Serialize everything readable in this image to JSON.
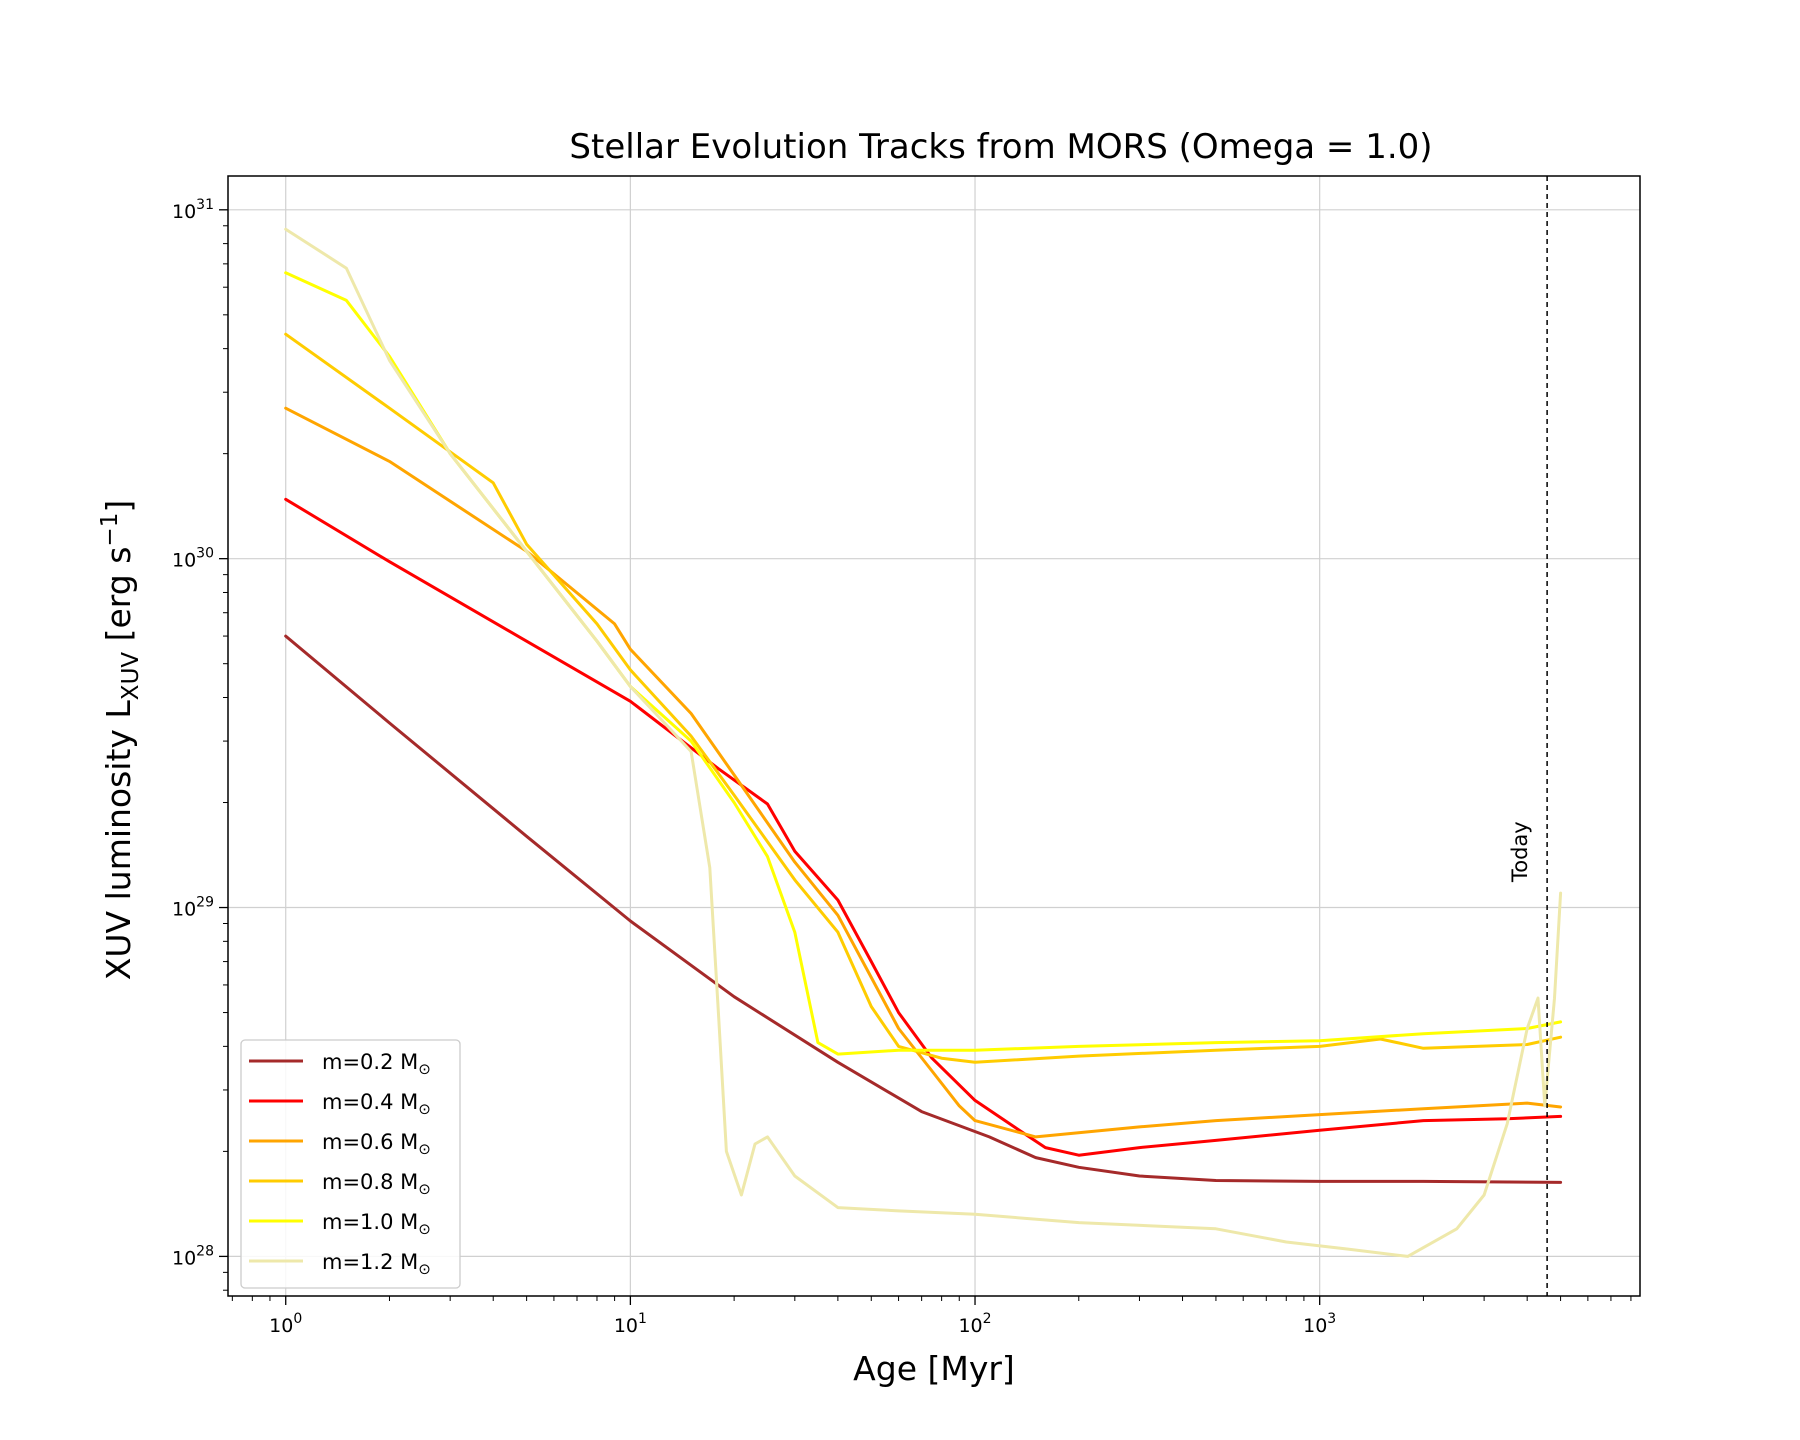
{
  "chart_data": {
    "type": "line",
    "title": "Stellar Evolution Tracks from MORS (Omega = 1.0)",
    "xlabel": "Age [Myr]",
    "ylabel": "XUV luminosity L",
    "ylabel_sub": "XUV",
    "ylabel_unit": " [erg s",
    "ylabel_unit_sup": "−1",
    "ylabel_unit_end": "]",
    "xscale": "log",
    "yscale": "log",
    "xlim": [
      0.68,
      8500
    ],
    "ylim": [
      7.7e+27,
      1.25e+31
    ],
    "grid": true,
    "x_ticks": [
      {
        "base": "10",
        "exp": "0",
        "value": 1
      },
      {
        "base": "10",
        "exp": "1",
        "value": 10
      },
      {
        "base": "10",
        "exp": "2",
        "value": 100
      },
      {
        "base": "10",
        "exp": "3",
        "value": 1000
      }
    ],
    "y_ticks": [
      {
        "base": "10",
        "exp": "28",
        "value": 1e+28
      },
      {
        "base": "10",
        "exp": "29",
        "value": 1e+29
      },
      {
        "base": "10",
        "exp": "30",
        "value": 1e+30
      },
      {
        "base": "10",
        "exp": "31",
        "value": 1e+31
      }
    ],
    "legend_position": "lower-left",
    "annotation": {
      "text": "Today",
      "x": 4570
    },
    "series": [
      {
        "name": "m=0.2 M",
        "color": "#a52a2a",
        "points": [
          [
            1,
            6e+29
          ],
          [
            2,
            3.38e+29
          ],
          [
            5,
            1.6e+29
          ],
          [
            10,
            9.15e+28
          ],
          [
            20,
            5.55e+28
          ],
          [
            40,
            3.6e+28
          ],
          [
            70,
            2.6e+28
          ],
          [
            110,
            2.2e+28
          ],
          [
            150,
            1.92e+28
          ],
          [
            200,
            1.8e+28
          ],
          [
            300,
            1.7e+28
          ],
          [
            500,
            1.65e+28
          ],
          [
            1000,
            1.64e+28
          ],
          [
            2000,
            1.64e+28
          ],
          [
            5000,
            1.63e+28
          ]
        ]
      },
      {
        "name": "m=0.4 M",
        "color": "#ff0000",
        "points": [
          [
            1,
            1.48e+30
          ],
          [
            2,
            9.8e+29
          ],
          [
            5,
            5.8e+29
          ],
          [
            10,
            3.9e+29
          ],
          [
            18,
            2.5e+29
          ],
          [
            25,
            1.98e+29
          ],
          [
            30,
            1.45e+29
          ],
          [
            40,
            1.05e+29
          ],
          [
            50,
            7e+28
          ],
          [
            60,
            5e+28
          ],
          [
            75,
            3.7e+28
          ],
          [
            100,
            2.8e+28
          ],
          [
            130,
            2.35e+28
          ],
          [
            160,
            2.05e+28
          ],
          [
            200,
            1.95e+28
          ],
          [
            300,
            2.05e+28
          ],
          [
            500,
            2.15e+28
          ],
          [
            1000,
            2.3e+28
          ],
          [
            2000,
            2.45e+28
          ],
          [
            3500,
            2.48e+28
          ],
          [
            5000,
            2.52e+28
          ]
        ]
      },
      {
        "name": "m=0.6 M",
        "color": "#ffa500",
        "points": [
          [
            1,
            2.7e+30
          ],
          [
            2,
            1.9e+30
          ],
          [
            5,
            1.05e+30
          ],
          [
            9,
            6.5e+29
          ],
          [
            10,
            5.5e+29
          ],
          [
            15,
            3.6e+29
          ],
          [
            20,
            2.4e+29
          ],
          [
            30,
            1.35e+29
          ],
          [
            40,
            9.5e+28
          ],
          [
            50,
            6.3e+28
          ],
          [
            60,
            4.5e+28
          ],
          [
            75,
            3.4e+28
          ],
          [
            90,
            2.7e+28
          ],
          [
            100,
            2.45e+28
          ],
          [
            150,
            2.2e+28
          ],
          [
            300,
            2.35e+28
          ],
          [
            500,
            2.45e+28
          ],
          [
            1000,
            2.55e+28
          ],
          [
            2000,
            2.65e+28
          ],
          [
            4000,
            2.75e+28
          ],
          [
            5000,
            2.68e+28
          ]
        ]
      },
      {
        "name": "m=0.8 M",
        "color": "#ffcc00",
        "points": [
          [
            1,
            4.4e+30
          ],
          [
            2,
            2.7e+30
          ],
          [
            4,
            1.65e+30
          ],
          [
            5,
            1.1e+30
          ],
          [
            8,
            6.5e+29
          ],
          [
            10,
            4.8e+29
          ],
          [
            15,
            3.1e+29
          ],
          [
            20,
            2.1e+29
          ],
          [
            30,
            1.2e+29
          ],
          [
            40,
            8.5e+28
          ],
          [
            50,
            5.2e+28
          ],
          [
            60,
            4e+28
          ],
          [
            80,
            3.7e+28
          ],
          [
            100,
            3.6e+28
          ],
          [
            200,
            3.75e+28
          ],
          [
            500,
            3.9e+28
          ],
          [
            1000,
            4e+28
          ],
          [
            1500,
            4.2e+28
          ],
          [
            2000,
            3.95e+28
          ],
          [
            4000,
            4.05e+28
          ],
          [
            5000,
            4.25e+28
          ]
        ]
      },
      {
        "name": "m=1.0 M",
        "color": "#ffff00",
        "points": [
          [
            1,
            6.6e+30
          ],
          [
            1.5,
            5.5e+30
          ],
          [
            2,
            3.8e+30
          ],
          [
            3,
            2e+30
          ],
          [
            5,
            1.05e+30
          ],
          [
            8,
            5.8e+29
          ],
          [
            10,
            4.3e+29
          ],
          [
            15,
            3e+29
          ],
          [
            20,
            2e+29
          ],
          [
            25,
            1.4e+29
          ],
          [
            30,
            8.5e+28
          ],
          [
            35,
            4.1e+28
          ],
          [
            40,
            3.8e+28
          ],
          [
            60,
            3.9e+28
          ],
          [
            100,
            3.9e+28
          ],
          [
            200,
            4e+28
          ],
          [
            500,
            4.1e+28
          ],
          [
            1000,
            4.15e+28
          ],
          [
            2000,
            4.35e+28
          ],
          [
            4000,
            4.5e+28
          ],
          [
            5000,
            4.7e+28
          ]
        ]
      },
      {
        "name": "m=1.2 M",
        "color": "#eee8aa",
        "points": [
          [
            1,
            8.8e+30
          ],
          [
            1.5,
            6.8e+30
          ],
          [
            2,
            3.7e+30
          ],
          [
            3,
            2e+30
          ],
          [
            5,
            1.05e+30
          ],
          [
            8,
            5.8e+29
          ],
          [
            10,
            4.3e+29
          ],
          [
            15,
            2.8e+29
          ],
          [
            17,
            1.3e+29
          ],
          [
            18,
            5e+28
          ],
          [
            19,
            2e+28
          ],
          [
            21,
            1.5e+28
          ],
          [
            23,
            2.1e+28
          ],
          [
            25,
            2.2e+28
          ],
          [
            30,
            1.7e+28
          ],
          [
            40,
            1.38e+28
          ],
          [
            60,
            1.35e+28
          ],
          [
            100,
            1.32e+28
          ],
          [
            200,
            1.25e+28
          ],
          [
            500,
            1.2e+28
          ],
          [
            800,
            1.1e+28
          ],
          [
            1200,
            1.05e+28
          ],
          [
            1800,
            1e+28
          ],
          [
            2500,
            1.2e+28
          ],
          [
            3000,
            1.5e+28
          ],
          [
            3500,
            2.4e+28
          ],
          [
            4000,
            4.5e+28
          ],
          [
            4300,
            5.5e+28
          ],
          [
            4500,
            2.7e+28
          ],
          [
            4800,
            5.5e+28
          ],
          [
            5000,
            1.1e+29
          ]
        ]
      }
    ]
  }
}
